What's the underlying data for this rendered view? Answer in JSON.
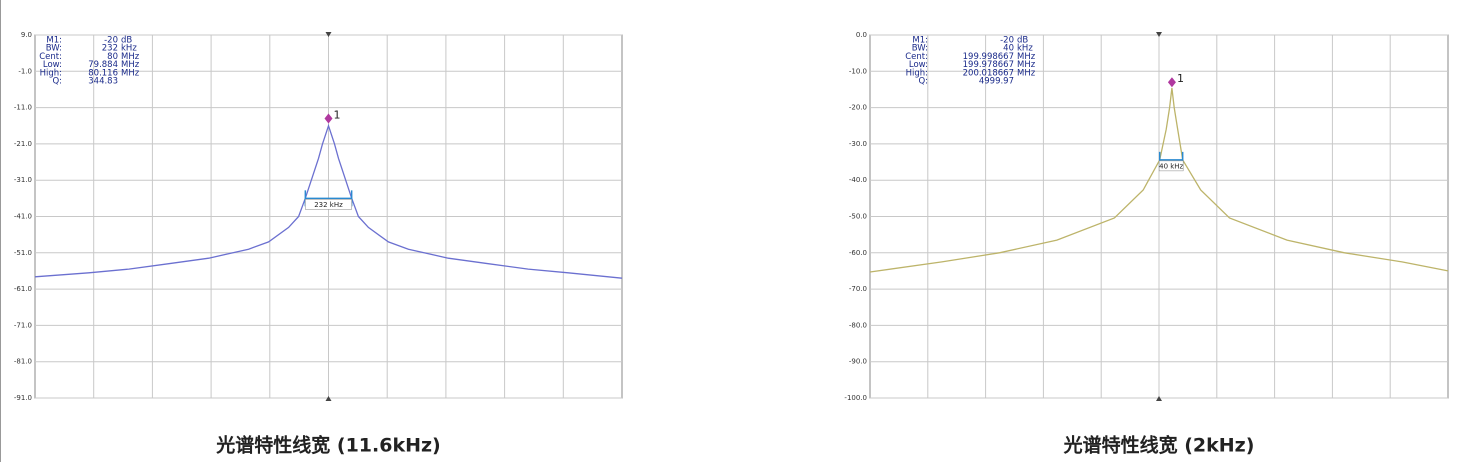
{
  "chart_data": [
    {
      "type": "line",
      "color": "#6b70d0",
      "caption": "光谱特性线宽 (11.6kHz)",
      "xlim": [
        78.53,
        81.47
      ],
      "ylim": [
        -91,
        9
      ],
      "yticks": [
        {
          "value": 9,
          "label": "9.0"
        },
        {
          "value": -1,
          "label": "-1.0"
        },
        {
          "value": -11,
          "label": "-11.0"
        },
        {
          "value": -21,
          "label": "-21.0"
        },
        {
          "value": -31,
          "label": "-31.0"
        },
        {
          "value": -41,
          "label": "-41.0"
        },
        {
          "value": -51,
          "label": "-51.0"
        },
        {
          "value": -61,
          "label": "-61.0"
        },
        {
          "value": -71,
          "label": "-71.0"
        },
        {
          "value": -81,
          "label": "-81.0"
        },
        {
          "value": -91,
          "label": "-91.0"
        }
      ],
      "grid": true,
      "x": [
        78.53,
        78.8,
        79.0,
        79.2,
        79.4,
        79.6,
        79.7,
        79.8,
        79.85,
        79.884,
        79.92,
        79.95,
        79.97,
        80,
        80.03,
        80.05,
        80.08,
        80.116,
        80.15,
        80.2,
        80.3,
        80.4,
        80.6,
        80.8,
        81.0,
        81.2,
        81.47
      ],
      "values": [
        -57.6,
        -56.5,
        -55.5,
        -54,
        -52.5,
        -50,
        -48,
        -44,
        -41,
        -36,
        -30,
        -25,
        -21,
        -16,
        -21,
        -25,
        -30,
        -36,
        -41,
        -44,
        -48,
        -50,
        -52.5,
        -54,
        -55.5,
        -56.5,
        -58
      ],
      "marker": {
        "label": "1",
        "x": 80,
        "y": -14
      },
      "bandwidth": {
        "label": "232 kHz",
        "x": [
          79.884,
          80.116
        ],
        "y": -36
      },
      "marker_table": [
        [
          "M1:",
          "-20",
          "dB"
        ],
        [
          "BW:",
          "232",
          "kHz"
        ],
        [
          "Cent:",
          "80",
          "MHz"
        ],
        [
          "Low:",
          "79.884",
          "MHz"
        ],
        [
          "High:",
          "80.116",
          "MHz"
        ],
        [
          "Q:",
          "344.83"
        ]
      ]
    },
    {
      "type": "line",
      "color": "#bdb46a",
      "caption": "光谱特性线宽 (2kHz)",
      "xlim": [
        199.475,
        200.48
      ],
      "ylim": [
        -100,
        0
      ],
      "yticks": [
        {
          "value": 0,
          "label": "0.0"
        },
        {
          "value": -10,
          "label": "-10.0"
        },
        {
          "value": -20,
          "label": "-20.0"
        },
        {
          "value": -30,
          "label": "-30.0"
        },
        {
          "value": -40,
          "label": "-40.0"
        },
        {
          "value": -50,
          "label": "-50.0"
        },
        {
          "value": -60,
          "label": "-60.0"
        },
        {
          "value": -70,
          "label": "-70.0"
        },
        {
          "value": -80,
          "label": "-80.0"
        },
        {
          "value": -90,
          "label": "-90.0"
        },
        {
          "value": -100,
          "label": "-100.0"
        }
      ],
      "grid": true,
      "x": [
        199.475,
        199.6,
        199.7,
        199.8,
        199.9,
        199.95,
        199.978667,
        199.99,
        199.996,
        200,
        200.004,
        200.01,
        200.018667,
        200.05,
        200.1,
        200.2,
        200.3,
        200.4,
        200.48
      ],
      "values": [
        -65.3,
        -62.5,
        -60,
        -56.5,
        -50.4,
        -42.7,
        -34.4,
        -26,
        -20,
        -14.6,
        -20,
        -26,
        -34.4,
        -42.7,
        -50.4,
        -56.5,
        -60,
        -62.5,
        -65
      ],
      "marker": {
        "label": "1",
        "x": 200,
        "y": -13
      },
      "bandwidth": {
        "label": "40 kHz",
        "x": [
          199.978667,
          200.018667
        ],
        "y": -34.4
      },
      "marker_table": [
        [
          "M1:",
          "-20",
          "dB"
        ],
        [
          "BW:",
          "40",
          "kHz"
        ],
        [
          "Cent:",
          "199.998667",
          "MHz"
        ],
        [
          "Low:",
          "199.978667",
          "MHz"
        ],
        [
          "High:",
          "200.018667",
          "MHz"
        ],
        [
          "Q:",
          "4999.97"
        ]
      ]
    }
  ]
}
